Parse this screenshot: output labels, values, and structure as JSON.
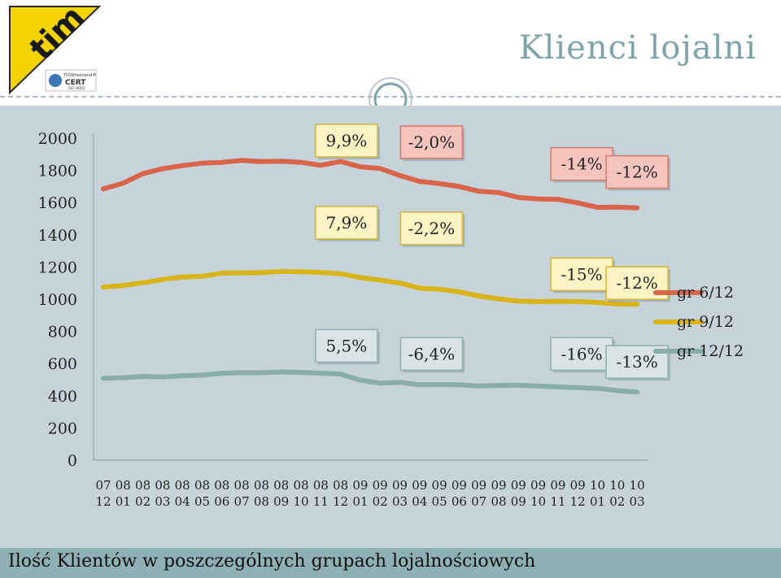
{
  "slide": {
    "title": "Klienci lojalni",
    "footer": "Ilość Klientów w poszczególnych grupach lojalnościowych",
    "logo": {
      "brand": "tim",
      "cert_top": "TÜVRheinland®",
      "cert_main": "CERT",
      "cert_sub": "ISO 9001"
    }
  },
  "chart_data": {
    "type": "line",
    "ylim": [
      0,
      2000
    ],
    "yticks": [
      0,
      200,
      400,
      600,
      800,
      1000,
      1200,
      1400,
      1600,
      1800,
      2000
    ],
    "categories": [
      [
        "07",
        "12"
      ],
      [
        "08",
        "01"
      ],
      [
        "08",
        "02"
      ],
      [
        "08",
        "03"
      ],
      [
        "08",
        "04"
      ],
      [
        "08",
        "05"
      ],
      [
        "08",
        "06"
      ],
      [
        "08",
        "07"
      ],
      [
        "08",
        "08"
      ],
      [
        "08",
        "09"
      ],
      [
        "08",
        "10"
      ],
      [
        "08",
        "11"
      ],
      [
        "08",
        "12"
      ],
      [
        "09",
        "01"
      ],
      [
        "09",
        "02"
      ],
      [
        "09",
        "03"
      ],
      [
        "09",
        "04"
      ],
      [
        "09",
        "05"
      ],
      [
        "09",
        "06"
      ],
      [
        "09",
        "07"
      ],
      [
        "09",
        "08"
      ],
      [
        "09",
        "09"
      ],
      [
        "09",
        "10"
      ],
      [
        "09",
        "11"
      ],
      [
        "09",
        "12"
      ],
      [
        "10",
        "01"
      ],
      [
        "10",
        "02"
      ],
      [
        "10",
        "03"
      ]
    ],
    "legend_position": "right",
    "series": [
      {
        "name": "gr 6/12",
        "color": "#d9644a",
        "values": [
          1685,
          1720,
          1780,
          1810,
          1830,
          1845,
          1850,
          1862,
          1855,
          1857,
          1850,
          1832,
          1855,
          1822,
          1812,
          1768,
          1732,
          1718,
          1700,
          1670,
          1662,
          1632,
          1622,
          1620,
          1598,
          1570,
          1572,
          1567
        ]
      },
      {
        "name": "gr 9/12",
        "color": "#d8b417",
        "values": [
          1075,
          1085,
          1102,
          1122,
          1138,
          1142,
          1162,
          1163,
          1165,
          1172,
          1170,
          1166,
          1158,
          1135,
          1118,
          1100,
          1068,
          1062,
          1045,
          1020,
          1002,
          988,
          985,
          987,
          985,
          980,
          970,
          968
        ]
      },
      {
        "name": "gr 12/12",
        "color": "#8aacac",
        "values": [
          508,
          512,
          520,
          516,
          524,
          528,
          540,
          543,
          543,
          548,
          545,
          540,
          535,
          497,
          478,
          483,
          468,
          469,
          468,
          460,
          464,
          465,
          460,
          455,
          450,
          446,
          432,
          423
        ]
      }
    ],
    "annotations": [
      {
        "text": "9,9%",
        "color": "yellow",
        "x_index": 12.3,
        "y": 1985
      },
      {
        "text": "-2,0%",
        "color": "red",
        "x_index": 16.6,
        "y": 1975
      },
      {
        "text": "-14%",
        "color": "red",
        "x_index": 24.2,
        "y": 1840
      },
      {
        "text": "-12%",
        "color": "red",
        "x_index": 27.0,
        "y": 1790
      },
      {
        "text": "7,9%",
        "color": "yellow",
        "x_index": 12.3,
        "y": 1475
      },
      {
        "text": "-2,2%",
        "color": "yellow",
        "x_index": 16.6,
        "y": 1440
      },
      {
        "text": "-15%",
        "color": "yellow",
        "x_index": 24.2,
        "y": 1155
      },
      {
        "text": "-12%",
        "color": "yellow",
        "x_index": 27.0,
        "y": 1100
      },
      {
        "text": "5,5%",
        "color": "gray",
        "x_index": 12.3,
        "y": 710
      },
      {
        "text": "-6,4%",
        "color": "gray",
        "x_index": 16.6,
        "y": 660
      },
      {
        "text": "-16%",
        "color": "gray",
        "x_index": 24.2,
        "y": 660
      },
      {
        "text": "-13%",
        "color": "gray",
        "x_index": 27.0,
        "y": 610
      }
    ]
  }
}
